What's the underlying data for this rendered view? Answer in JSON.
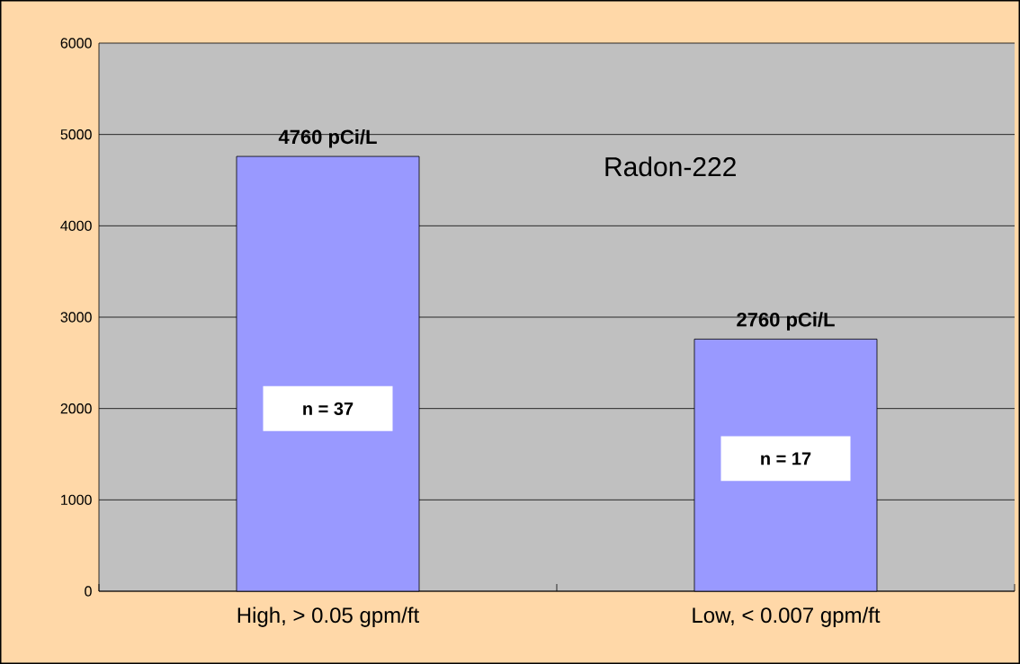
{
  "chart_data": {
    "type": "bar",
    "title": "Radon-222",
    "categories": [
      "High, > 0.05 gpm/ft",
      "Low, < 0.007 gpm/ft"
    ],
    "values": [
      4760,
      2760
    ],
    "color": "#9999ff",
    "value_labels": [
      "4760 pCi/L",
      "2760 pCi/L"
    ],
    "annotations": [
      "n = 37",
      "n = 17"
    ],
    "ylim": [
      0,
      6000
    ],
    "yticks": [
      0,
      1000,
      2000,
      3000,
      4000,
      5000,
      6000
    ],
    "grid": "y"
  }
}
